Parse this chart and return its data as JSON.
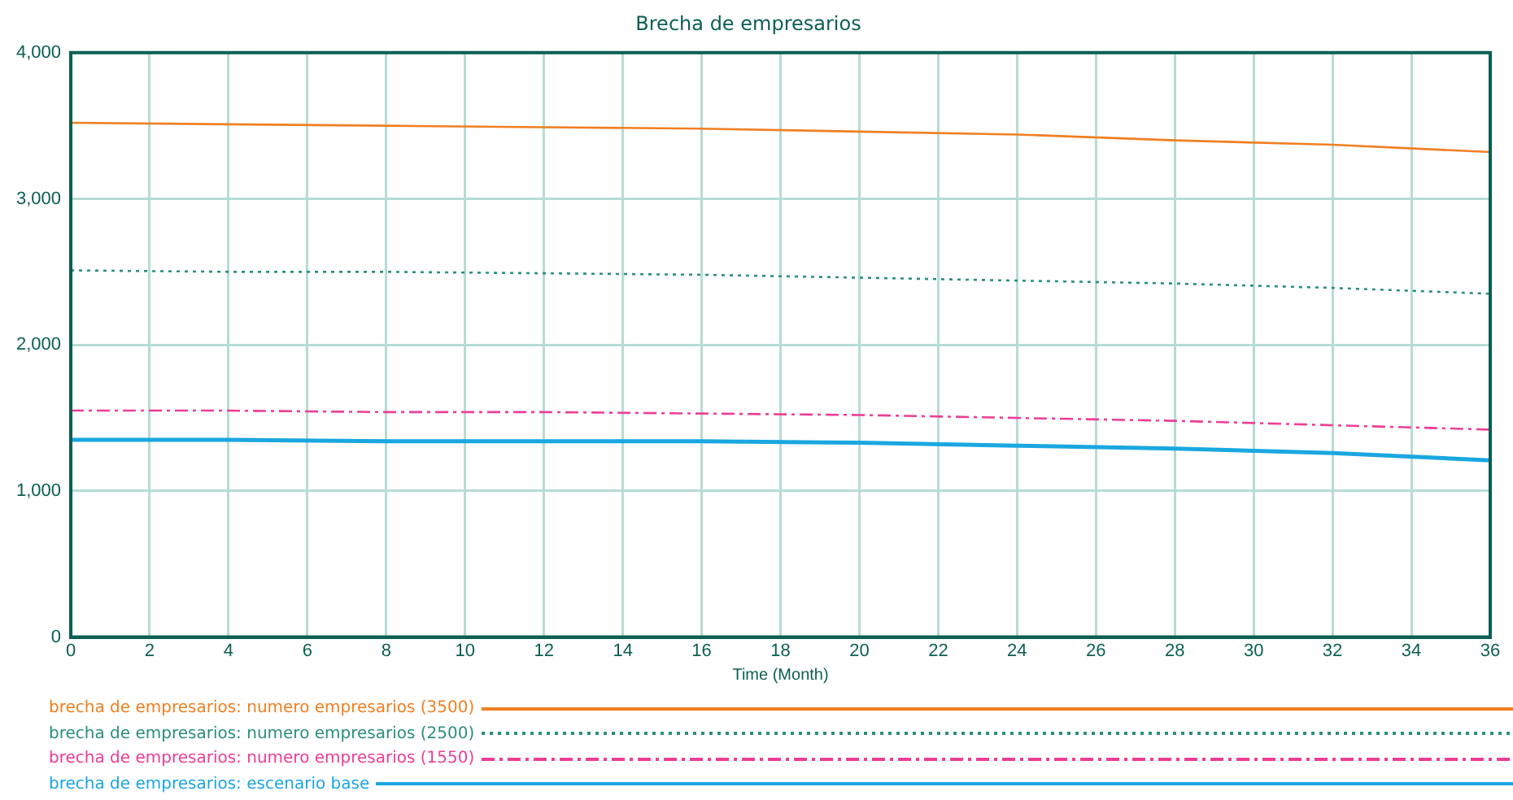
{
  "chart_data": {
    "type": "line",
    "title": "Brecha de empresarios",
    "xlabel": "Time (Month)",
    "x": [
      0,
      4,
      8,
      12,
      16,
      20,
      24,
      28,
      32,
      36
    ],
    "xlim": [
      0,
      36
    ],
    "xticks": [
      0,
      2,
      4,
      6,
      8,
      10,
      12,
      14,
      16,
      18,
      20,
      22,
      24,
      26,
      28,
      30,
      32,
      34,
      36
    ],
    "ylim": [
      0,
      4000
    ],
    "yticks": [
      {
        "value": 0,
        "label": "0"
      },
      {
        "value": 1000,
        "label": "1,000"
      },
      {
        "value": 2000,
        "label": "2,000"
      },
      {
        "value": 3000,
        "label": "3,000"
      },
      {
        "value": 4000,
        "label": "4,000"
      }
    ],
    "grid": true,
    "legend": "bottom",
    "marker": "none",
    "series": [
      {
        "name": "brecha de empresarios: numero empresarios (3500)",
        "color": "#f07f22",
        "line_style": "solid",
        "values": [
          3520,
          3510,
          3500,
          3490,
          3480,
          3460,
          3440,
          3400,
          3370,
          3320
        ]
      },
      {
        "name": "brecha de empresarios: numero empresarios (2500)",
        "color": "#2b8f7c",
        "line_style": "dotted",
        "values": [
          2510,
          2500,
          2500,
          2490,
          2480,
          2460,
          2440,
          2420,
          2390,
          2350
        ]
      },
      {
        "name": "brecha de empresarios: numero empresarios (1550)",
        "color": "#ee3d96",
        "line_style": "dashed",
        "values": [
          1550,
          1550,
          1540,
          1540,
          1530,
          1520,
          1500,
          1480,
          1450,
          1420
        ]
      },
      {
        "name": "brecha de empresarios: escenario base",
        "color": "#1aa7e0",
        "line_style": "solid",
        "values": [
          1350,
          1350,
          1340,
          1340,
          1340,
          1330,
          1310,
          1290,
          1260,
          1210
        ]
      }
    ]
  }
}
